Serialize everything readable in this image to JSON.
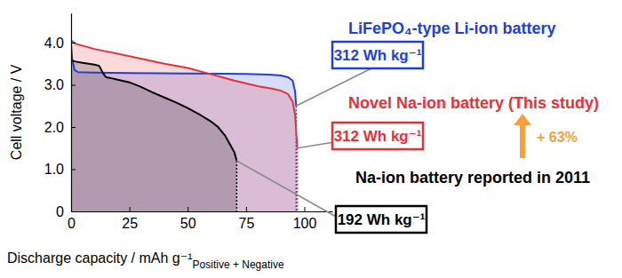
{
  "chart_data": {
    "type": "area",
    "xlabel": "Discharge capacity / mAh g⁻¹",
    "xlabel_subscript": "Positive + Negative",
    "ylabel": "Cell voltage / V",
    "xlim": [
      0,
      112
    ],
    "ylim": [
      0,
      4.7
    ],
    "xticks": [
      0,
      25,
      50,
      75,
      100
    ],
    "yticks": [
      0,
      {
        "value": 1,
        "label": "1.0"
      },
      {
        "value": 2,
        "label": "2.0"
      },
      {
        "value": 3,
        "label": "3.0"
      },
      {
        "value": 4,
        "label": "4.0"
      }
    ],
    "grid": false,
    "series": [
      {
        "name": "LiFePO₄-type Li-ion battery",
        "color": "#1f3fd8",
        "x": [
          0,
          0.5,
          1.5,
          3,
          10,
          25,
          50,
          75,
          85,
          90,
          93,
          95,
          96,
          96.5
        ],
        "values": [
          3.95,
          3.6,
          3.35,
          3.3,
          3.29,
          3.28,
          3.27,
          3.26,
          3.24,
          3.22,
          3.18,
          3.1,
          2.85,
          2.5
        ]
      },
      {
        "name": "Novel Na-ion battery (This study)",
        "color": "#e8303a",
        "x": [
          0,
          2,
          10,
          25,
          40,
          50,
          60,
          70,
          80,
          87,
          90,
          93,
          95,
          96,
          96.5,
          97
        ],
        "values": [
          4.05,
          3.97,
          3.85,
          3.68,
          3.5,
          3.4,
          3.25,
          3.1,
          2.97,
          2.9,
          2.86,
          2.78,
          2.6,
          2.3,
          1.9,
          1.5
        ]
      },
      {
        "name": "Na-ion battery reported in 2011",
        "color": "#000000",
        "x": [
          0,
          2,
          5,
          10,
          12,
          13,
          14,
          15,
          17,
          20,
          25,
          30,
          35,
          40,
          45,
          50,
          55,
          60,
          63,
          66,
          68,
          70,
          71
        ],
        "values": [
          3.58,
          3.55,
          3.52,
          3.48,
          3.45,
          3.35,
          3.25,
          3.18,
          3.16,
          3.12,
          3.06,
          2.95,
          2.82,
          2.7,
          2.58,
          2.45,
          2.3,
          2.13,
          2.0,
          1.8,
          1.6,
          1.4,
          1.2
        ]
      }
    ],
    "annotations": [
      "312 Wh kg⁻¹",
      "312 Wh kg⁻¹",
      "192 Wh kg⁻¹",
      "+ 63%"
    ]
  }
}
